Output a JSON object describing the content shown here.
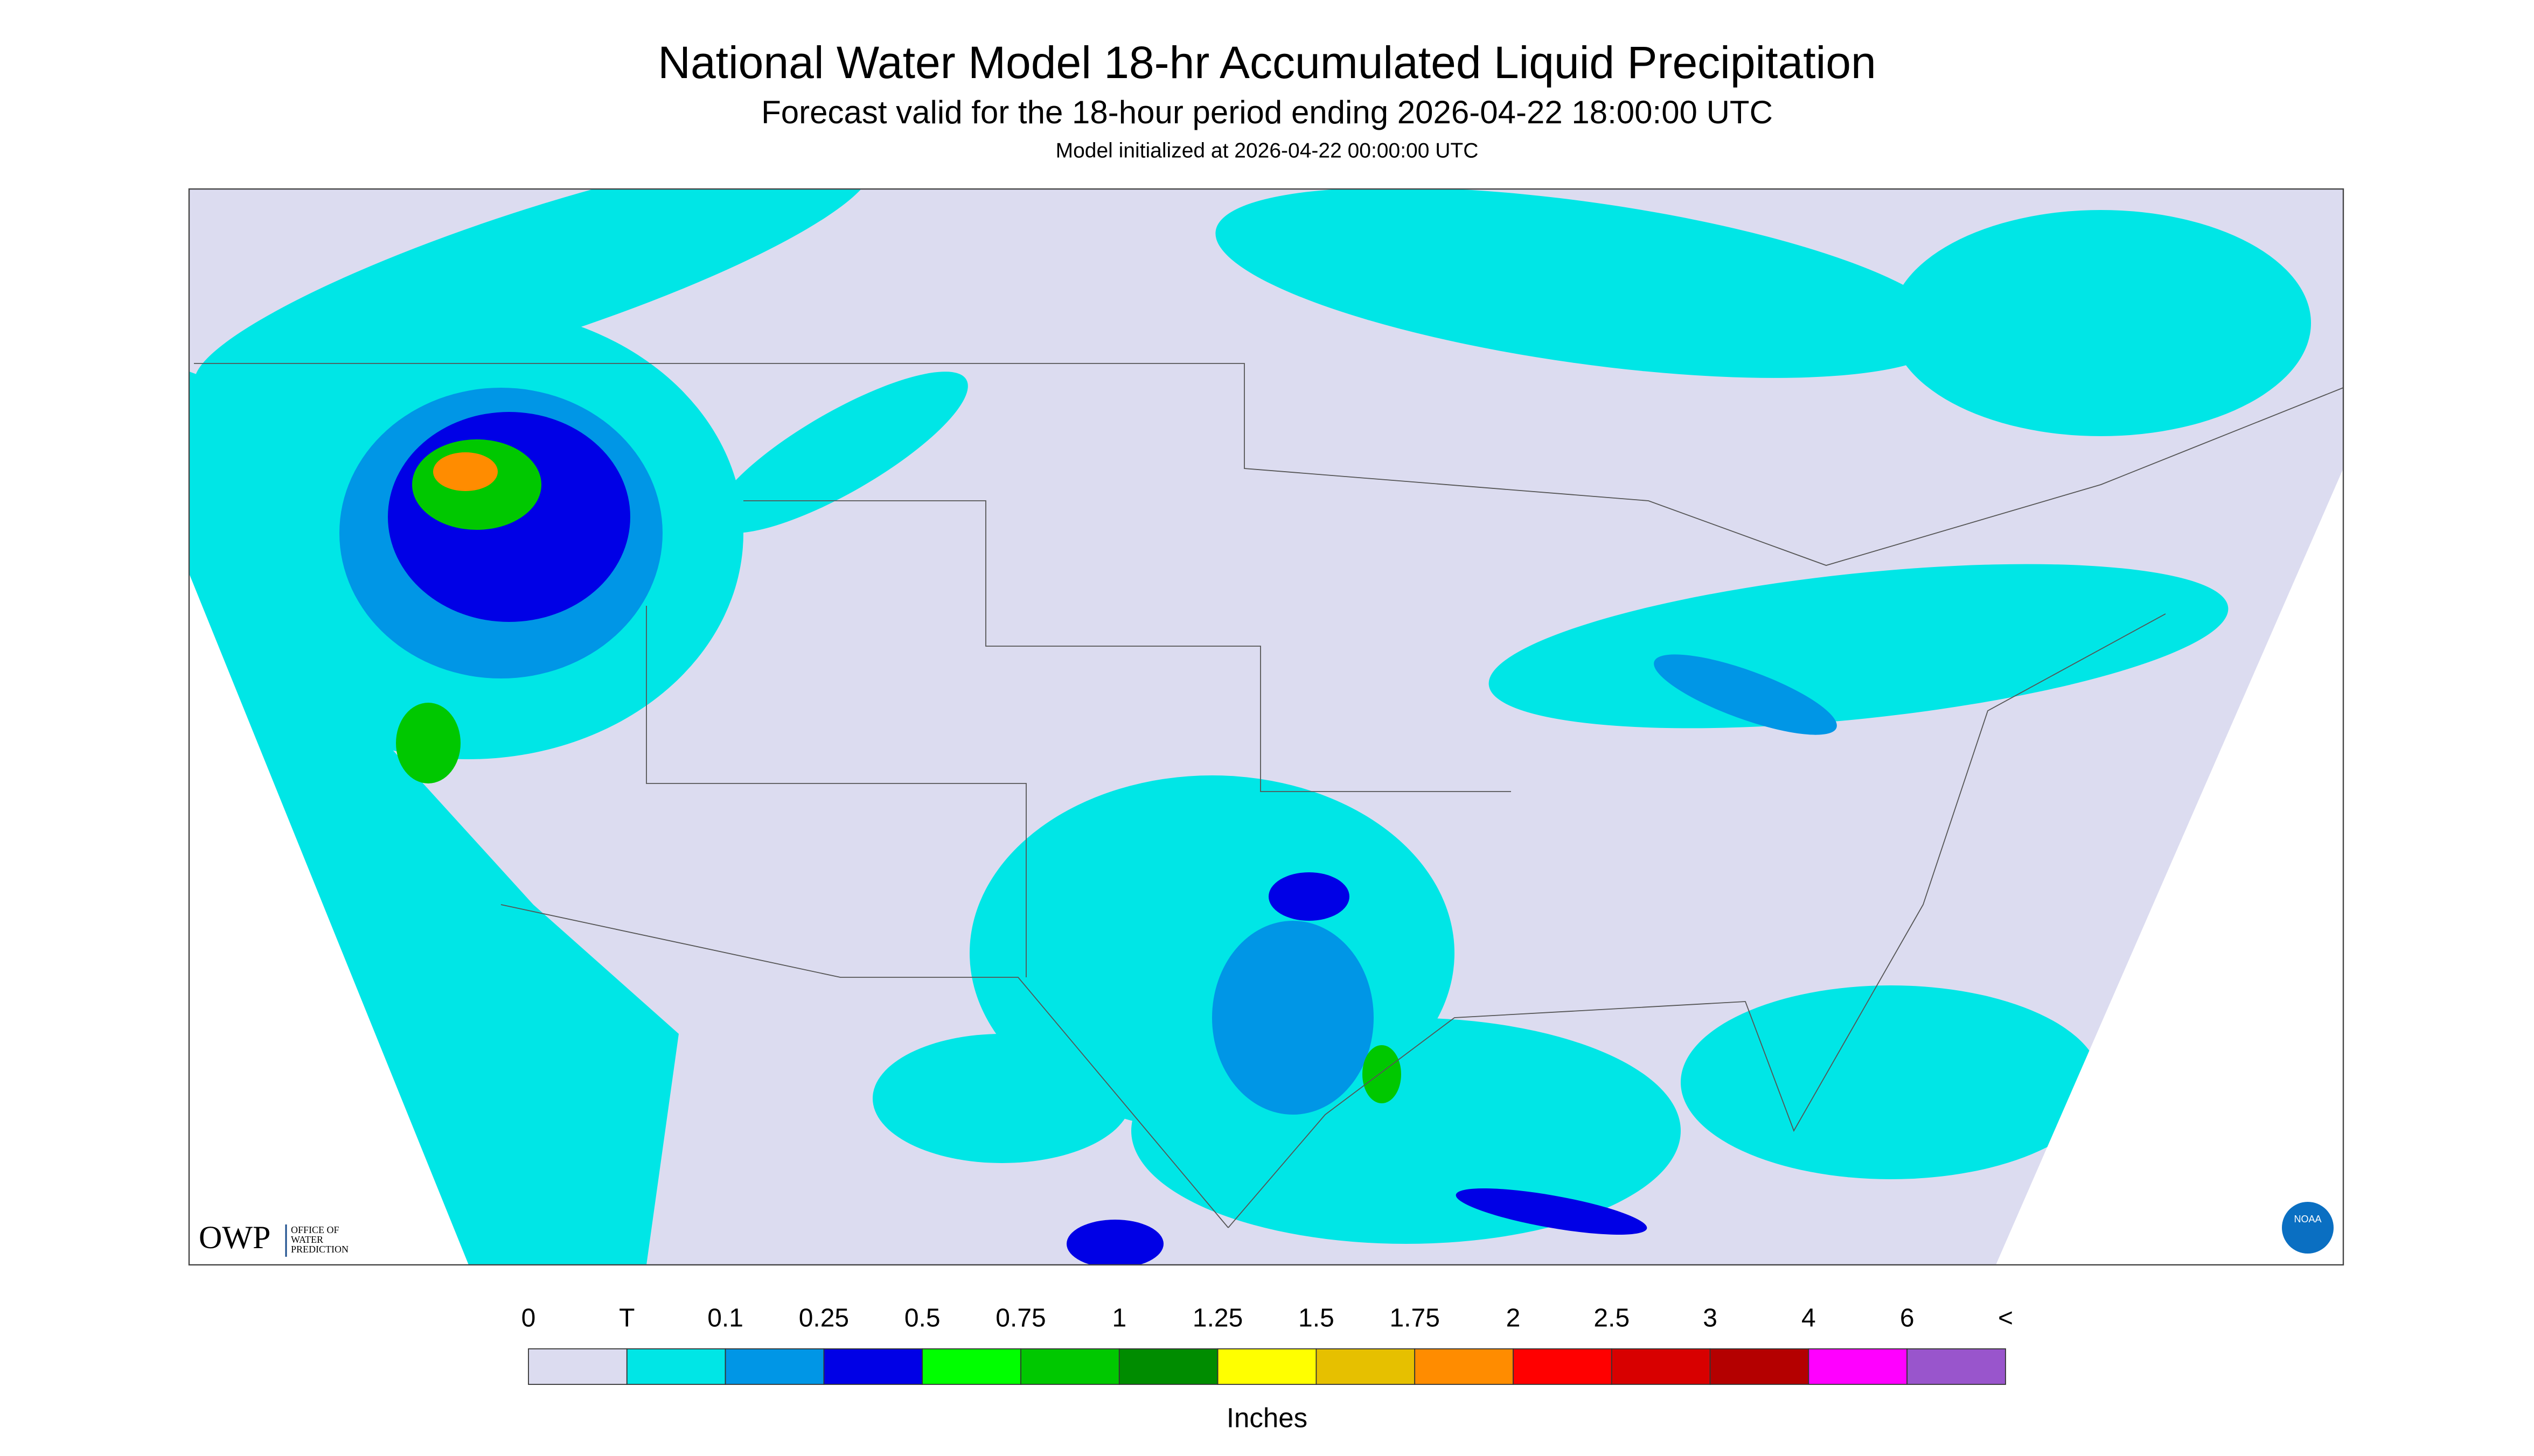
{
  "header": {
    "title": "National Water Model 18-hr Accumulated Liquid Precipitation",
    "subtitle": "Forecast valid for the 18-hour period ending 2026-04-22 18:00:00 UTC",
    "initialized": "Model initialized at 2026-04-22 00:00:00 UTC"
  },
  "legend": {
    "labels": [
      "0",
      "T",
      "0.1",
      "0.25",
      "0.5",
      "0.75",
      "1",
      "1.25",
      "1.5",
      "1.75",
      "2",
      "2.5",
      "3",
      "4",
      "6",
      "<"
    ],
    "colors": [
      "#dcdcf0",
      "#00e6e6",
      "#0096e6",
      "#0000e6",
      "#00ff00",
      "#00c800",
      "#008c00",
      "#ffff00",
      "#e6c000",
      "#ff8c00",
      "#ff0000",
      "#d80000",
      "#b40000",
      "#ff00ff",
      "#9955cc"
    ],
    "unit": "Inches"
  },
  "logos": {
    "owp": "OWP",
    "owp_name": [
      "OFFICE OF",
      "WATER",
      "PREDICTION"
    ],
    "noaa": "NOAA"
  }
}
